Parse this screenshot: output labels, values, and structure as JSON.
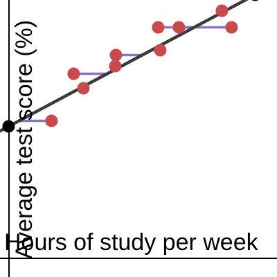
{
  "chart_data": {
    "type": "scatter",
    "xlabel": "Hours of study per week",
    "ylabel": "Average test score (%)",
    "xlim": [
      -0.62,
      19.38
    ],
    "ylim": [
      -8.55,
      31.45
    ],
    "grid": false,
    "points": [
      {
        "x": 3.1,
        "y": 14.0
      },
      {
        "x": 4.7,
        "y": 20.8
      },
      {
        "x": 5.4,
        "y": 18.7
      },
      {
        "x": 7.7,
        "y": 21.9
      },
      {
        "x": 7.75,
        "y": 23.5
      },
      {
        "x": 10.8,
        "y": 27.5
      },
      {
        "x": 10.95,
        "y": 24.2
      },
      {
        "x": 12.3,
        "y": 27.5
      },
      {
        "x": 15.4,
        "y": 29.9
      },
      {
        "x": 16.1,
        "y": 27.5
      }
    ],
    "regression_line": {
      "p1": {
        "x": 0,
        "y": 13.2
      },
      "p2": {
        "x": 17.8,
        "y": 32.2
      }
    },
    "colors": {
      "points": "#c94a4a",
      "residuals": "#8a73c8",
      "line": "#3a3a3a",
      "anchors": "#000000",
      "axes": "#000000"
    }
  }
}
